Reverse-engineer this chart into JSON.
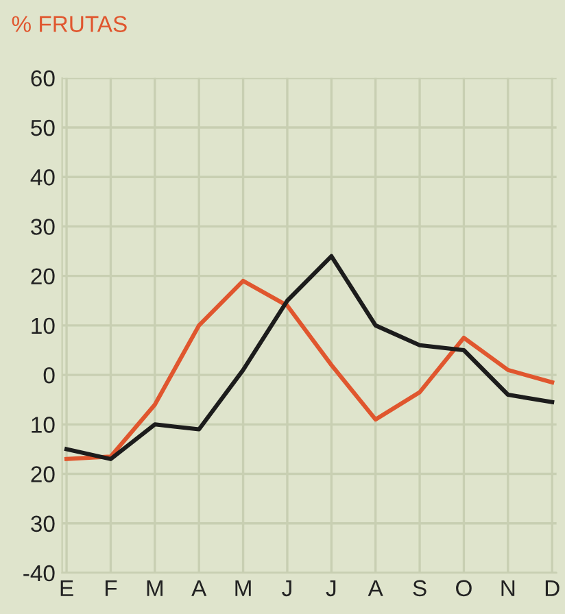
{
  "chart_data": {
    "type": "line",
    "title": "% FRUTAS",
    "categories": [
      "E",
      "F",
      "M",
      "A",
      "M",
      "J",
      "J",
      "A",
      "S",
      "O",
      "N",
      "D"
    ],
    "series": [
      {
        "color": "#e0562e",
        "values": [
          -17,
          -16.5,
          -6,
          10,
          19,
          14,
          2,
          -9,
          -3.5,
          7.5,
          1,
          -1.5
        ]
      },
      {
        "color": "#1c1c1c",
        "values": [
          -15,
          -17,
          -10,
          -11,
          1,
          15,
          24,
          10,
          6,
          5,
          -4,
          -5.5
        ]
      }
    ],
    "ylim": [
      -40,
      60
    ],
    "yticks": [
      60,
      50,
      40,
      30,
      20,
      10,
      0,
      {
        "value": -10,
        "label": "10"
      },
      {
        "value": -20,
        "label": "20"
      },
      {
        "value": -30,
        "label": "30"
      },
      {
        "value": -40,
        "label": "-40"
      }
    ],
    "grid": true,
    "marker": "none",
    "line_style": "solid"
  }
}
